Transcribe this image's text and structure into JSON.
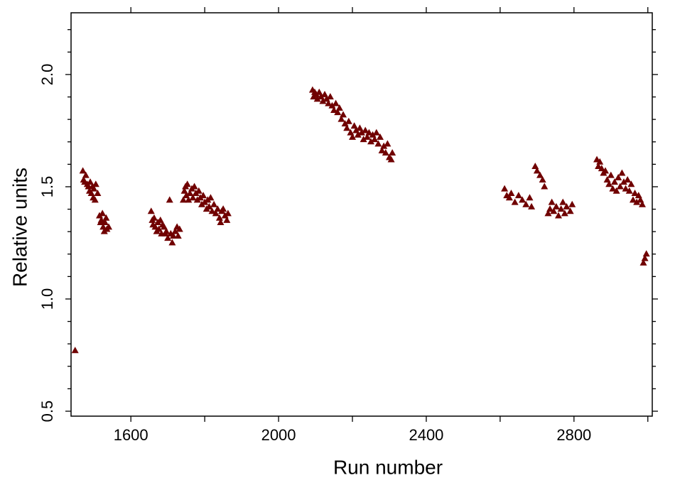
{
  "chart_data": {
    "type": "scatter",
    "x_label": "Run number",
    "y_label": "Relative units",
    "color": "#700000",
    "xlim": [
      1438,
      3012
    ],
    "ylim": [
      0.478,
      2.275
    ],
    "xticks": [
      1600,
      2000,
      2400,
      2800
    ],
    "xminor": [
      1800,
      2200,
      2600,
      3000
    ],
    "yticks": [
      {
        "value": 0.5,
        "label": "0.5"
      },
      {
        "value": 1.0,
        "label": "1.0"
      },
      {
        "value": 1.5,
        "label": "1.5"
      },
      {
        "value": 2.0,
        "label": "2.0"
      }
    ],
    "yminor": [
      0.6,
      0.7,
      0.8,
      0.9,
      1.1,
      1.2,
      1.3,
      1.4,
      1.6,
      1.7,
      1.8,
      1.9,
      2.1,
      2.2
    ],
    "x": [
      1449,
      1470,
      1472,
      1475,
      1478,
      1482,
      1485,
      1488,
      1490,
      1493,
      1496,
      1498,
      1500,
      1503,
      1505,
      1510,
      1515,
      1518,
      1520,
      1523,
      1525,
      1528,
      1530,
      1533,
      1535,
      1540,
      1655,
      1658,
      1660,
      1663,
      1666,
      1670,
      1673,
      1676,
      1680,
      1683,
      1686,
      1690,
      1693,
      1696,
      1700,
      1705,
      1708,
      1712,
      1715,
      1720,
      1725,
      1728,
      1732,
      1742,
      1745,
      1748,
      1750,
      1753,
      1756,
      1760,
      1765,
      1768,
      1772,
      1776,
      1780,
      1784,
      1788,
      1792,
      1796,
      1800,
      1805,
      1808,
      1812,
      1816,
      1820,
      1825,
      1830,
      1835,
      1840,
      1843,
      1846,
      1850,
      1855,
      1860,
      1863,
      2092,
      2095,
      2098,
      2102,
      2105,
      2110,
      2115,
      2120,
      2125,
      2130,
      2135,
      2140,
      2145,
      2150,
      2155,
      2160,
      2165,
      2170,
      2175,
      2180,
      2185,
      2190,
      2195,
      2200,
      2205,
      2210,
      2215,
      2220,
      2225,
      2230,
      2235,
      2240,
      2245,
      2250,
      2255,
      2260,
      2265,
      2270,
      2275,
      2280,
      2285,
      2290,
      2295,
      2300,
      2305,
      2308,
      2612,
      2618,
      2625,
      2630,
      2640,
      2650,
      2660,
      2670,
      2680,
      2685,
      2695,
      2700,
      2708,
      2715,
      2720,
      2730,
      2735,
      2740,
      2745,
      2752,
      2758,
      2765,
      2770,
      2775,
      2780,
      2790,
      2795,
      2862,
      2866,
      2870,
      2875,
      2880,
      2885,
      2890,
      2895,
      2900,
      2905,
      2910,
      2915,
      2920,
      2925,
      2930,
      2935,
      2940,
      2945,
      2950,
      2955,
      2960,
      2965,
      2970,
      2975,
      2980,
      2985,
      2988,
      2992,
      2996
    ],
    "y": [
      0.77,
      1.57,
      1.53,
      1.52,
      1.55,
      1.51,
      1.5,
      1.48,
      1.52,
      1.47,
      1.5,
      1.45,
      1.49,
      1.44,
      1.51,
      1.47,
      1.37,
      1.34,
      1.35,
      1.38,
      1.32,
      1.3,
      1.34,
      1.36,
      1.31,
      1.32,
      1.39,
      1.35,
      1.33,
      1.36,
      1.32,
      1.3,
      1.34,
      1.31,
      1.35,
      1.29,
      1.33,
      1.32,
      1.29,
      1.3,
      1.27,
      1.44,
      1.29,
      1.25,
      1.28,
      1.3,
      1.32,
      1.28,
      1.31,
      1.44,
      1.48,
      1.5,
      1.46,
      1.51,
      1.44,
      1.47,
      1.49,
      1.45,
      1.5,
      1.47,
      1.44,
      1.48,
      1.45,
      1.42,
      1.46,
      1.43,
      1.4,
      1.44,
      1.41,
      1.45,
      1.39,
      1.42,
      1.38,
      1.4,
      1.36,
      1.34,
      1.39,
      1.4,
      1.37,
      1.35,
      1.38,
      1.93,
      1.9,
      1.92,
      1.91,
      1.89,
      1.92,
      1.9,
      1.88,
      1.91,
      1.89,
      1.87,
      1.9,
      1.86,
      1.84,
      1.87,
      1.83,
      1.85,
      1.8,
      1.82,
      1.78,
      1.76,
      1.79,
      1.74,
      1.72,
      1.77,
      1.75,
      1.73,
      1.76,
      1.74,
      1.71,
      1.75,
      1.72,
      1.74,
      1.7,
      1.73,
      1.71,
      1.74,
      1.69,
      1.72,
      1.66,
      1.68,
      1.65,
      1.69,
      1.63,
      1.62,
      1.65,
      1.49,
      1.46,
      1.45,
      1.47,
      1.43,
      1.46,
      1.44,
      1.42,
      1.45,
      1.41,
      1.59,
      1.57,
      1.55,
      1.53,
      1.5,
      1.38,
      1.4,
      1.43,
      1.39,
      1.41,
      1.37,
      1.4,
      1.43,
      1.38,
      1.41,
      1.39,
      1.42,
      1.62,
      1.59,
      1.61,
      1.58,
      1.56,
      1.57,
      1.53,
      1.51,
      1.55,
      1.49,
      1.52,
      1.48,
      1.54,
      1.5,
      1.56,
      1.52,
      1.49,
      1.53,
      1.48,
      1.51,
      1.44,
      1.47,
      1.43,
      1.46,
      1.44,
      1.42,
      1.16,
      1.18,
      1.2
    ]
  }
}
